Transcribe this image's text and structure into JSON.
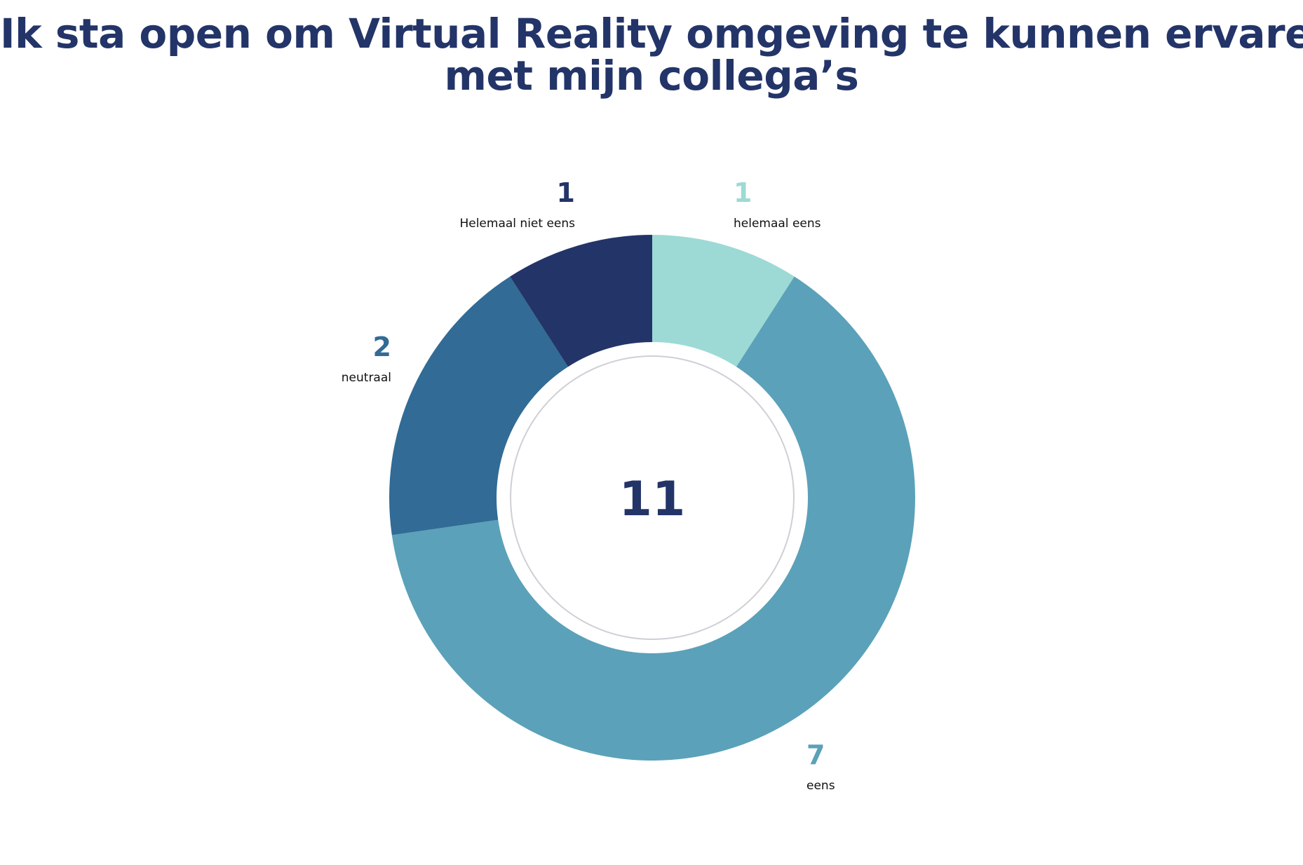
{
  "title": {
    "line1": "Ik sta open om Virtual Reality omgeving te kunnen ervaren",
    "line2": "met mijn collega’s"
  },
  "chart_data": {
    "type": "pie",
    "subtype": "donut",
    "title": "Ik sta open om Virtual Reality omgeving te kunnen ervaren met mijn collega’s",
    "total": 11,
    "slices": [
      {
        "label": "helemaal eens",
        "value": 1,
        "color": "#9DDAD5"
      },
      {
        "label": "eens",
        "value": 7,
        "color": "#5BA1B9"
      },
      {
        "label": "neutraal",
        "value": 2,
        "color": "#316B96"
      },
      {
        "label": "Helemaal niet eens",
        "value": 1,
        "color": "#233468"
      }
    ]
  },
  "center_label": "11"
}
